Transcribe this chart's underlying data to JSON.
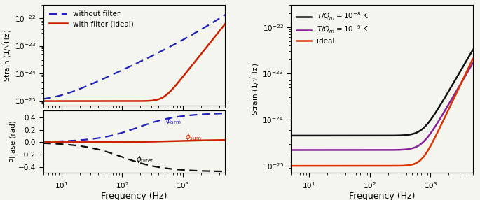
{
  "freq_min": 5,
  "freq_max": 5000,
  "colors": {
    "blue_dashed": "#2222bb",
    "red_solid_left": "#cc2200",
    "black_dashed": "#111111",
    "black_solid": "#111111",
    "purple_solid": "#882299",
    "red_right": "#dd3300"
  },
  "bg_color": "#f5f5f0",
  "xlabel": "Frequency (Hz)",
  "ylabel_strain": "Strain $(1/\\sqrt{\\mathrm{Hz}})$",
  "ylabel_phase": "Phase (rad)"
}
